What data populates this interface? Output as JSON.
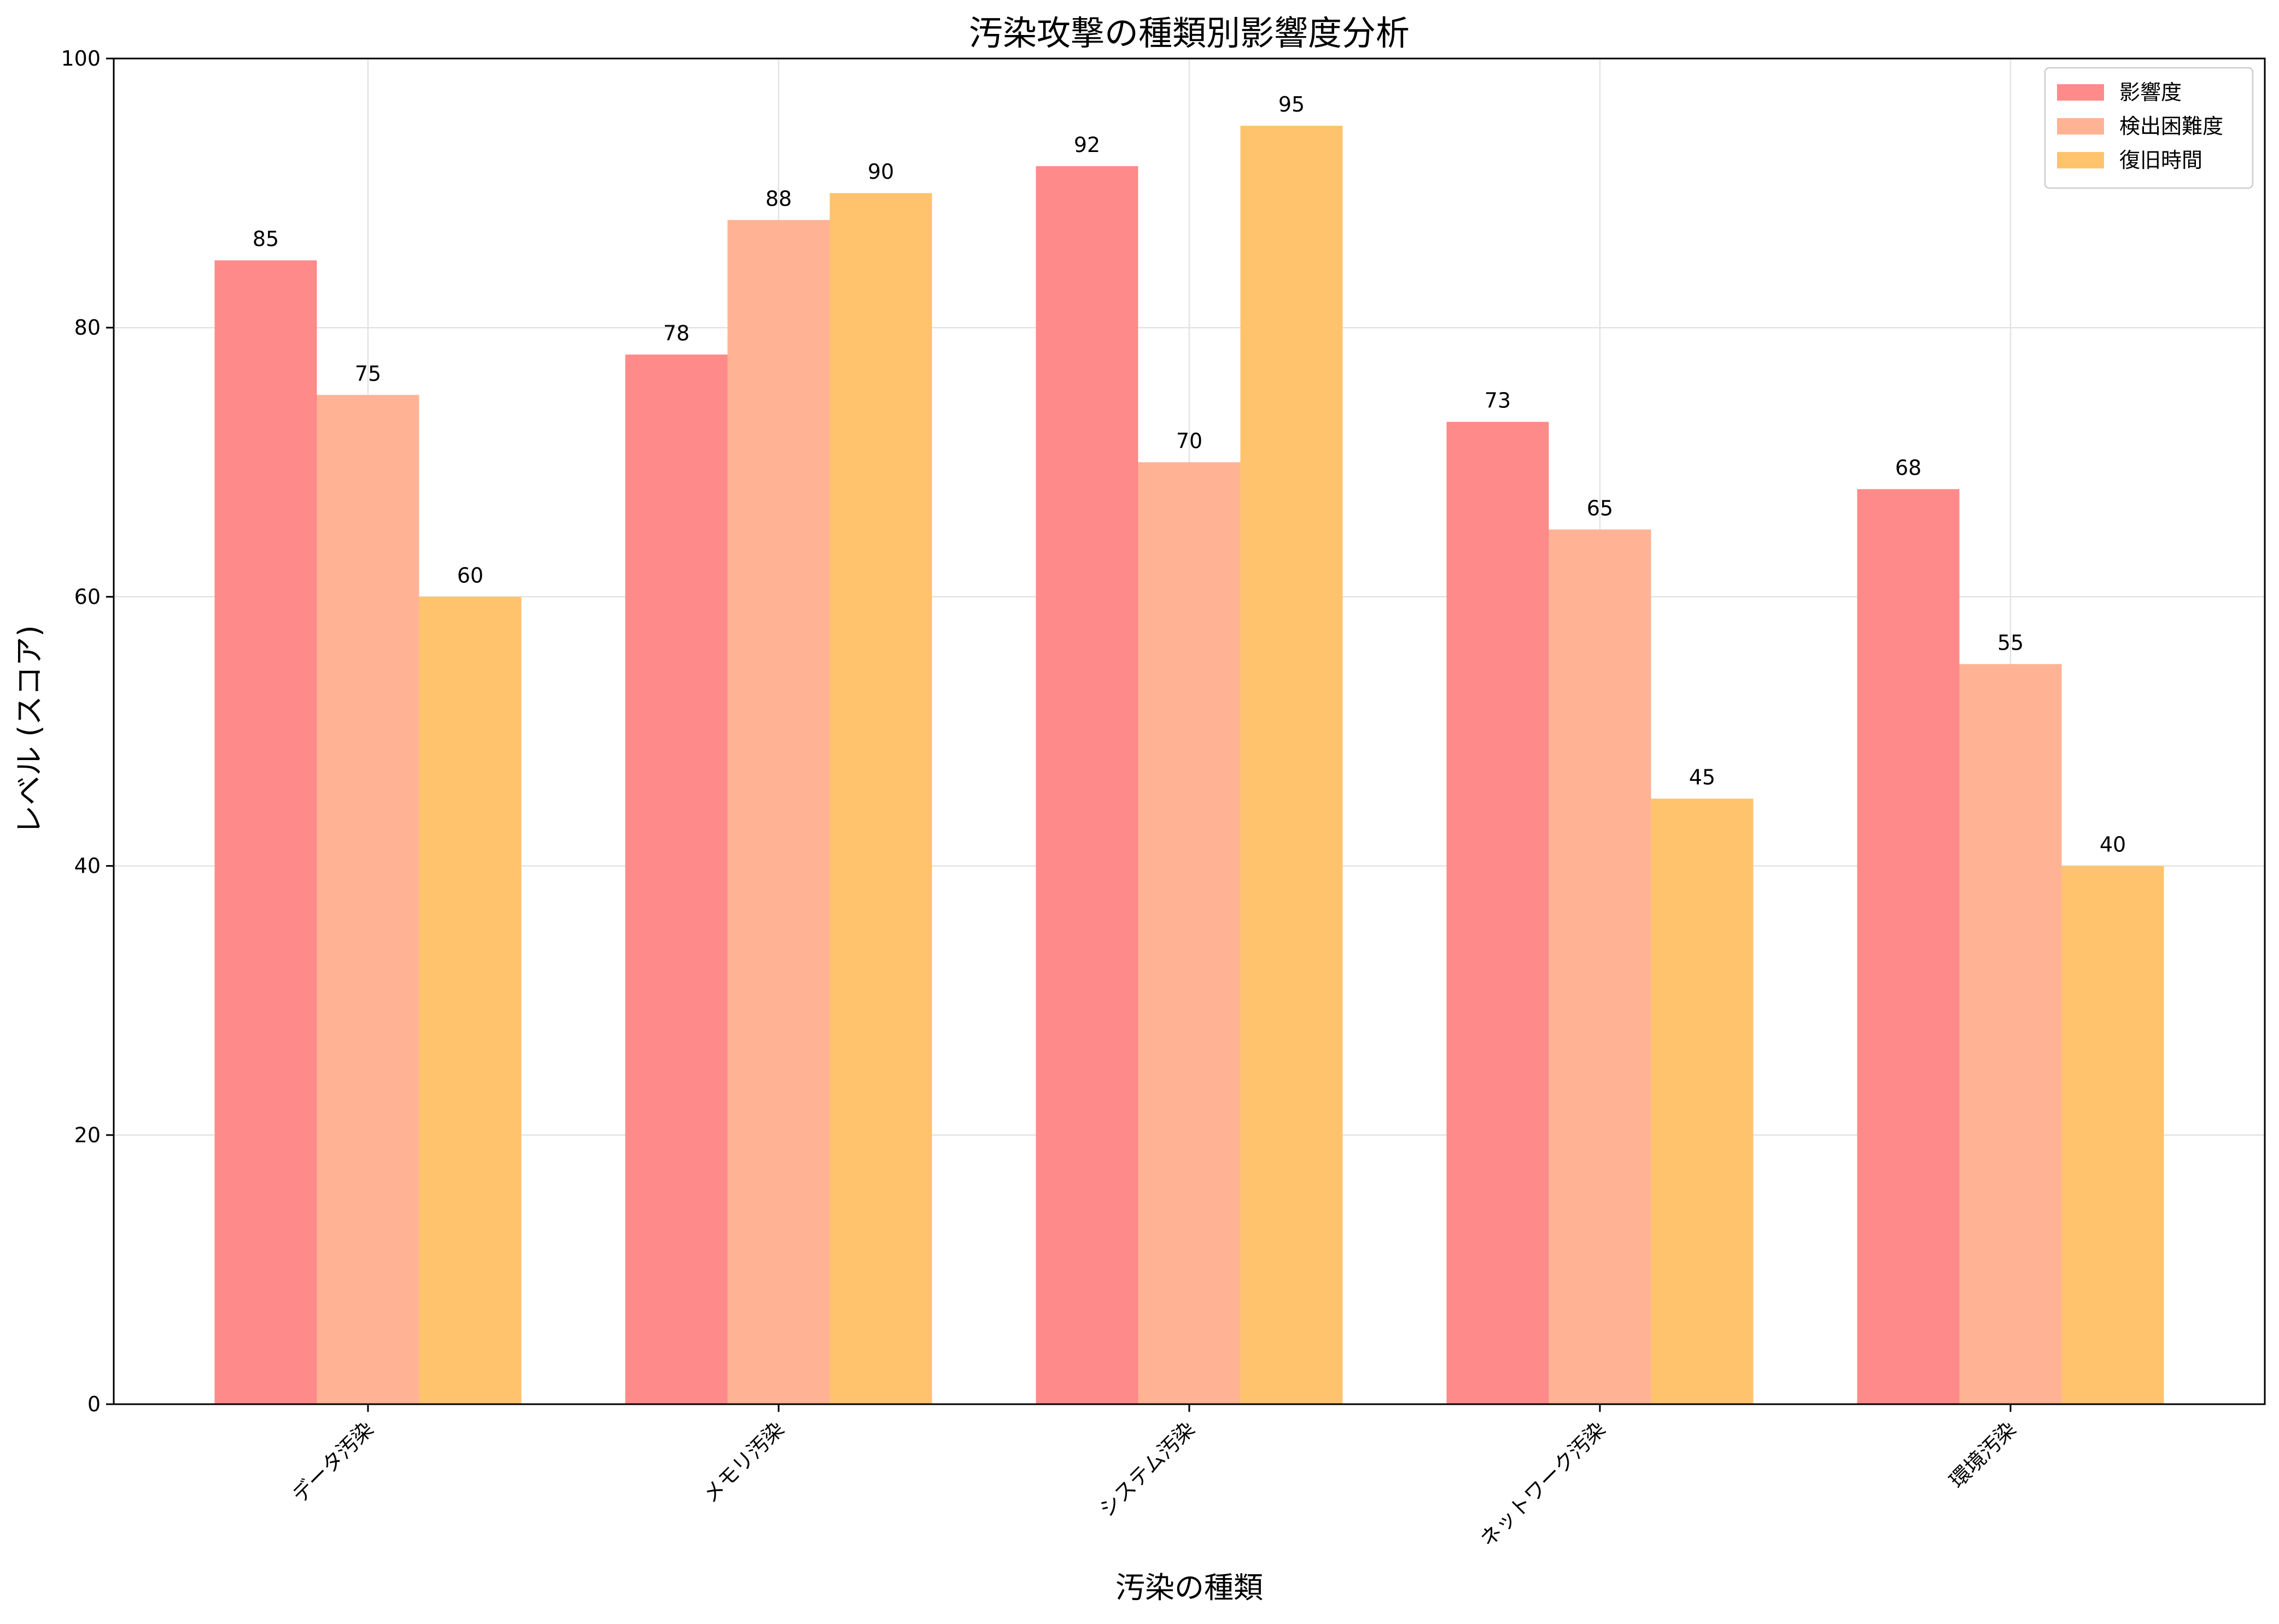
{
  "chart_data": {
    "type": "bar",
    "title": "汚染攻撃の種類別影響度分析",
    "xlabel": "汚染の種類",
    "ylabel": "レベル (スコア)",
    "categories": [
      "データ汚染",
      "メモリ汚染",
      "システム汚染",
      "ネットワーク汚染",
      "環境汚染"
    ],
    "series": [
      {
        "name": "影響度",
        "values": [
          85,
          78,
          92,
          73,
          68
        ],
        "color": "#ff8a8a"
      },
      {
        "name": "検出困難度",
        "values": [
          75,
          88,
          70,
          65,
          55
        ],
        "color": "#ffb394"
      },
      {
        "name": "復旧時間",
        "values": [
          60,
          90,
          95,
          45,
          40
        ],
        "color": "#ffc36e"
      }
    ],
    "ylim": [
      0,
      100
    ],
    "yticks": [
      0,
      20,
      40,
      60,
      80,
      100
    ],
    "grid": true,
    "legend_position": "top-right",
    "data_labels": true
  }
}
